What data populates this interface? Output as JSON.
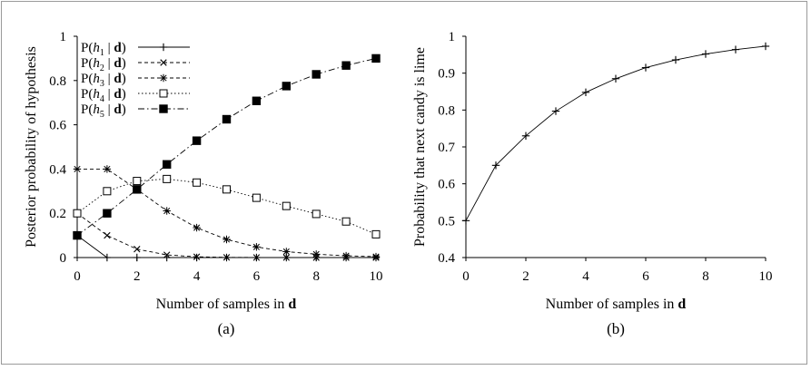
{
  "chart_data": [
    {
      "type": "line",
      "caption": "(a)",
      "xlabel": "Number of samples in d",
      "ylabel": "Posterior probability of hypothesis",
      "xlim": [
        0,
        10
      ],
      "ylim": [
        0,
        1
      ],
      "x_ticks": [
        "0",
        "2",
        "4",
        "6",
        "8",
        "10"
      ],
      "y_ticks": [
        "0",
        "0.2",
        "0.4",
        "0.6",
        "0.8",
        "1"
      ],
      "legend_position": "top-left",
      "grid": false,
      "x": [
        0,
        1,
        2,
        3,
        4,
        5,
        6,
        7,
        8,
        9,
        10
      ],
      "series": [
        {
          "name": "P(h1 | d)",
          "marker": "plus",
          "dash": "solid",
          "values": [
            0.1,
            0,
            0,
            0,
            0,
            0,
            0,
            0,
            0,
            0,
            0
          ]
        },
        {
          "name": "P(h2 | d)",
          "marker": "cross",
          "dash": "dashed",
          "values": [
            0.2,
            0.1,
            0.038,
            0.012,
            0.0035,
            0.001,
            0.0003,
            0.0001,
            0,
            0,
            0
          ]
        },
        {
          "name": "P(h3 | d)",
          "marker": "asterisk",
          "dash": "dashed",
          "values": [
            0.4,
            0.4,
            0.308,
            0.211,
            0.135,
            0.082,
            0.048,
            0.027,
            0.015,
            0.008,
            0.004
          ]
        },
        {
          "name": "P(h4 | d)",
          "marker": "square-open",
          "dash": "dotted",
          "values": [
            0.2,
            0.3,
            0.346,
            0.355,
            0.339,
            0.308,
            0.27,
            0.233,
            0.197,
            0.163,
            0.105
          ]
        },
        {
          "name": "P(h5 | d)",
          "marker": "square-filled",
          "dash": "dashdot",
          "values": [
            0.1,
            0.2,
            0.308,
            0.421,
            0.528,
            0.625,
            0.708,
            0.775,
            0.828,
            0.868,
            0.9
          ]
        }
      ]
    },
    {
      "type": "line",
      "caption": "(b)",
      "xlabel": "Number of samples in d",
      "ylabel": "Probability that next candy is lime",
      "xlim": [
        0,
        10
      ],
      "ylim": [
        0.4,
        1
      ],
      "x_ticks": [
        "0",
        "2",
        "4",
        "6",
        "8",
        "10"
      ],
      "y_ticks": [
        "0.4",
        "0.5",
        "0.6",
        "0.7",
        "0.8",
        "0.9",
        "1"
      ],
      "grid": false,
      "x": [
        0,
        1,
        2,
        3,
        4,
        5,
        6,
        7,
        8,
        9,
        10
      ],
      "series": [
        {
          "marker": "plus",
          "dash": "solid",
          "values": [
            0.5,
            0.65,
            0.73,
            0.797,
            0.848,
            0.885,
            0.915,
            0.936,
            0.952,
            0.964,
            0.973
          ]
        }
      ]
    }
  ],
  "colors": {
    "line": "#000000",
    "frame": "#9a9a9a"
  }
}
